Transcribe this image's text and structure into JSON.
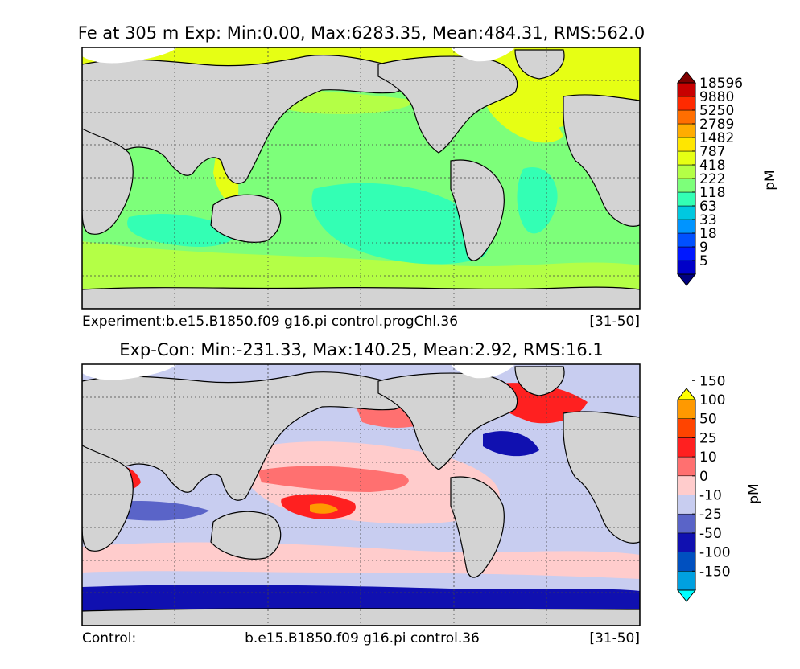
{
  "panels": [
    {
      "id": "exp",
      "title": "Fe at 305 m Exp: Min:0.00, Max:6283.35, Mean:484.31, RMS:562.0",
      "caption_left": "Experiment:b.e15.B1850.f09 g16.pi control.progChl.36",
      "caption_mid": "",
      "caption_right": "[31-50]",
      "colorbar": {
        "unit": "pM",
        "levels": [
          "5",
          "9",
          "18",
          "33",
          "63",
          "118",
          "222",
          "418",
          "787",
          "1482",
          "2789",
          "5250",
          "9880",
          "18596"
        ],
        "colors": [
          "#00007f",
          "#0000c8",
          "#0018ff",
          "#0050ff",
          "#0094ff",
          "#00c8e0",
          "#33ffb4",
          "#7dff7a",
          "#b4ff46",
          "#e6ff14",
          "#ffe600",
          "#ffac00",
          "#ff6e00",
          "#ff2a00",
          "#c80000",
          "#7f0000"
        ]
      },
      "map_colors": {
        "ocean": [
          "#33ffb4",
          "#7dff7a",
          "#b4ff46",
          "#e6ff14"
        ],
        "land": "#d3d3d3",
        "ice": "#ffffff"
      }
    },
    {
      "id": "diff",
      "title": "Exp-Con: Min:-231.33, Max:140.25, Mean:2.92, RMS:16.1",
      "caption_left": "Control:",
      "caption_mid": "b.e15.B1850.f09 g16.pi control.36",
      "caption_right": "[31-50]",
      "colorbar": {
        "unit": "pM",
        "levels": [
          "-150",
          "-100",
          "-50",
          "-25",
          "-10",
          "0",
          "10",
          "25",
          "50",
          "100",
          "150"
        ],
        "colors": [
          "#00ffff",
          "#00a0e0",
          "#0050c0",
          "#1010b0",
          "#5a64c8",
          "#c8cdf0",
          "#ffcccc",
          "#ff7070",
          "#ff2020",
          "#ff4400",
          "#ff9900",
          "#ffff00"
        ]
      },
      "map_colors": {
        "ocean": [
          "#c8cdf0",
          "#ffcccc",
          "#ff7070",
          "#ff2020",
          "#5a64c8",
          "#1010b0"
        ],
        "land": "#d3d3d3",
        "ice": "#ffffff"
      }
    }
  ]
}
